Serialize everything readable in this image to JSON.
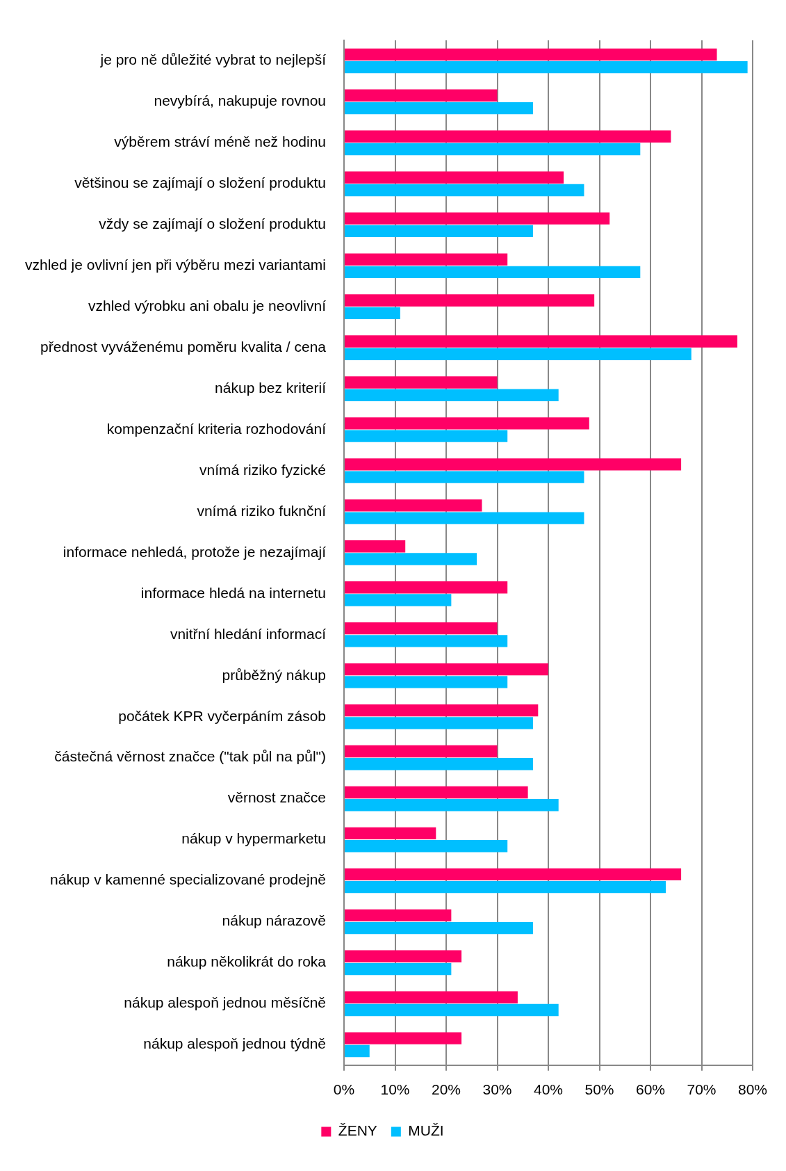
{
  "chart_data": {
    "type": "bar",
    "orientation": "horizontal",
    "categories": [
      "je pro ně důležité vybrat to nejlepší",
      "nevybírá, nakupuje rovnou",
      "výběrem stráví méně než hodinu",
      "většinou se zajímají o složení produktu",
      "vždy se zajímají o složení produktu",
      "vzhled je ovlivní jen při výběru mezi variantami",
      "vzhled výrobku ani obalu je neovlivní",
      "přednost vyváženému poměru kvalita / cena",
      "nákup bez kriterií",
      "kompenzační kriteria rozhodování",
      "vnímá riziko fyzické",
      "vnímá riziko fuknční",
      "informace nehledá, protože je nezajímají",
      "informace hledá na internetu",
      "vnitřní hledání informací",
      "průběžný nákup",
      "počátek KPR vyčerpáním zásob",
      "částečná věrnost značce (\"tak půl na půl\")",
      "věrnost značce",
      "nákup v hypermarketu",
      "nákup v kamenné specializované prodejně",
      "nákup nárazově",
      "nákup několikrát do roka",
      "nákup alespoň jednou měsíčně",
      "nákup alespoň jednou týdně"
    ],
    "series": [
      {
        "name": "ŽENY",
        "color": "#ff0066",
        "values": [
          73,
          30,
          64,
          43,
          52,
          32,
          49,
          77,
          30,
          48,
          66,
          27,
          12,
          32,
          30,
          40,
          38,
          30,
          36,
          18,
          66,
          21,
          23,
          34,
          23
        ]
      },
      {
        "name": "MUŽI",
        "color": "#00bfff",
        "values": [
          79,
          37,
          58,
          47,
          37,
          58,
          11,
          68,
          42,
          32,
          47,
          47,
          26,
          21,
          32,
          32,
          37,
          37,
          42,
          32,
          63,
          37,
          21,
          42,
          5
        ]
      }
    ],
    "xlim": [
      0,
      80
    ],
    "xticks": [
      {
        "value": 0,
        "label": "0%"
      },
      {
        "value": 10,
        "label": "10%"
      },
      {
        "value": 20,
        "label": "20%"
      },
      {
        "value": 30,
        "label": "30%"
      },
      {
        "value": 40,
        "label": "40%"
      },
      {
        "value": 50,
        "label": "50%"
      },
      {
        "value": 60,
        "label": "60%"
      },
      {
        "value": 70,
        "label": "70%"
      },
      {
        "value": 80,
        "label": "80%"
      }
    ],
    "grid": "x",
    "legend": "bottom"
  }
}
